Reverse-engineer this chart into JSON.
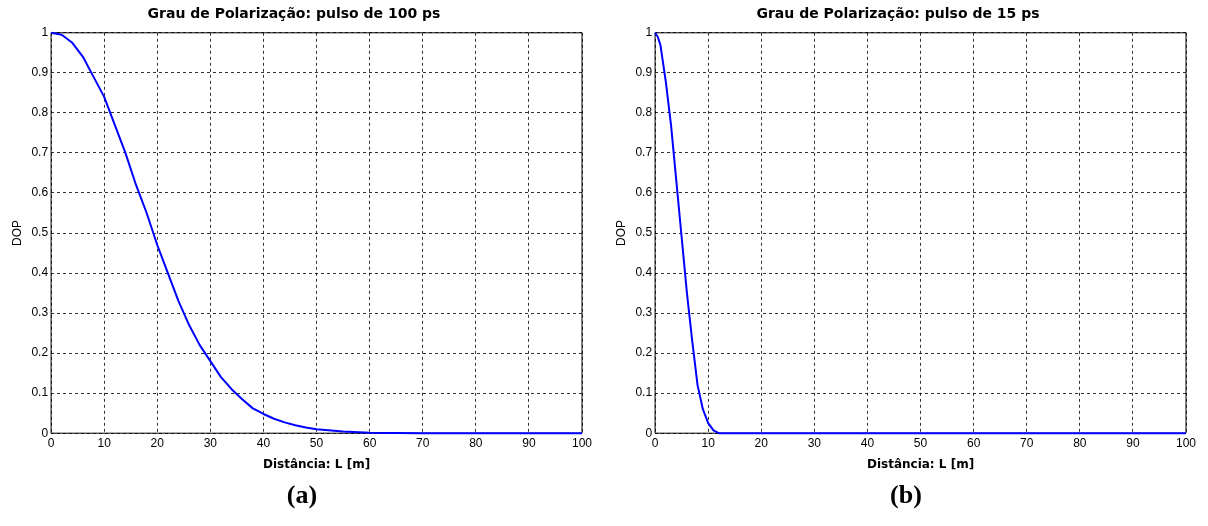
{
  "chart_data": [
    {
      "type": "line",
      "title": "Grau de Polarização: pulso de 100 ps",
      "xlabel": "Distância: L [m]",
      "ylabel": "DOP",
      "x": [
        0,
        2,
        4,
        6,
        8,
        10,
        12,
        14,
        16,
        18,
        20,
        22,
        24,
        26,
        28,
        30,
        32,
        34,
        36,
        38,
        40,
        42,
        44,
        46,
        48,
        50,
        55,
        60,
        70,
        80,
        90,
        100
      ],
      "series": [
        {
          "color": "#0000ff",
          "values": [
            1,
            0.995,
            0.975,
            0.94,
            0.89,
            0.84,
            0.77,
            0.7,
            0.62,
            0.55,
            0.47,
            0.4,
            0.33,
            0.27,
            0.22,
            0.18,
            0.14,
            0.11,
            0.085,
            0.062,
            0.048,
            0.036,
            0.027,
            0.02,
            0.014,
            0.01,
            0.004,
            0.001,
            0,
            0,
            0,
            0
          ]
        }
      ],
      "xlim": [
        0,
        100
      ],
      "xticks": [
        0,
        10,
        20,
        30,
        40,
        50,
        60,
        70,
        80,
        90,
        100
      ],
      "ylim": [
        0,
        1
      ],
      "yticks": [
        0,
        0.1,
        0.2,
        0.3,
        0.4,
        0.5,
        0.6,
        0.7,
        0.8,
        0.9,
        1
      ],
      "grid": true,
      "line_style": "solid",
      "marker": "none",
      "legend": false,
      "annotations": [
        "(a)"
      ]
    },
    {
      "type": "line",
      "title": "Grau de Polarização: pulso de 15 ps",
      "xlabel": "Distância: L [m]",
      "ylabel": "DOP",
      "x": [
        0,
        0.5,
        1,
        2,
        3,
        4,
        5,
        6,
        7,
        8,
        9,
        10,
        11,
        12,
        20,
        40,
        60,
        80,
        100
      ],
      "series": [
        {
          "color": "#0000ff",
          "values": [
            1,
            0.99,
            0.97,
            0.88,
            0.77,
            0.63,
            0.49,
            0.35,
            0.23,
            0.12,
            0.06,
            0.025,
            0.007,
            0,
            0,
            0,
            0,
            0,
            0
          ]
        }
      ],
      "xlim": [
        0,
        100
      ],
      "xticks": [
        0,
        10,
        20,
        30,
        40,
        50,
        60,
        70,
        80,
        90,
        100
      ],
      "ylim": [
        0,
        1
      ],
      "yticks": [
        0,
        0.1,
        0.2,
        0.3,
        0.4,
        0.5,
        0.6,
        0.7,
        0.8,
        0.9,
        1
      ],
      "grid": true,
      "line_style": "solid",
      "marker": "none",
      "legend": false,
      "annotations": [
        "(b)"
      ]
    }
  ]
}
